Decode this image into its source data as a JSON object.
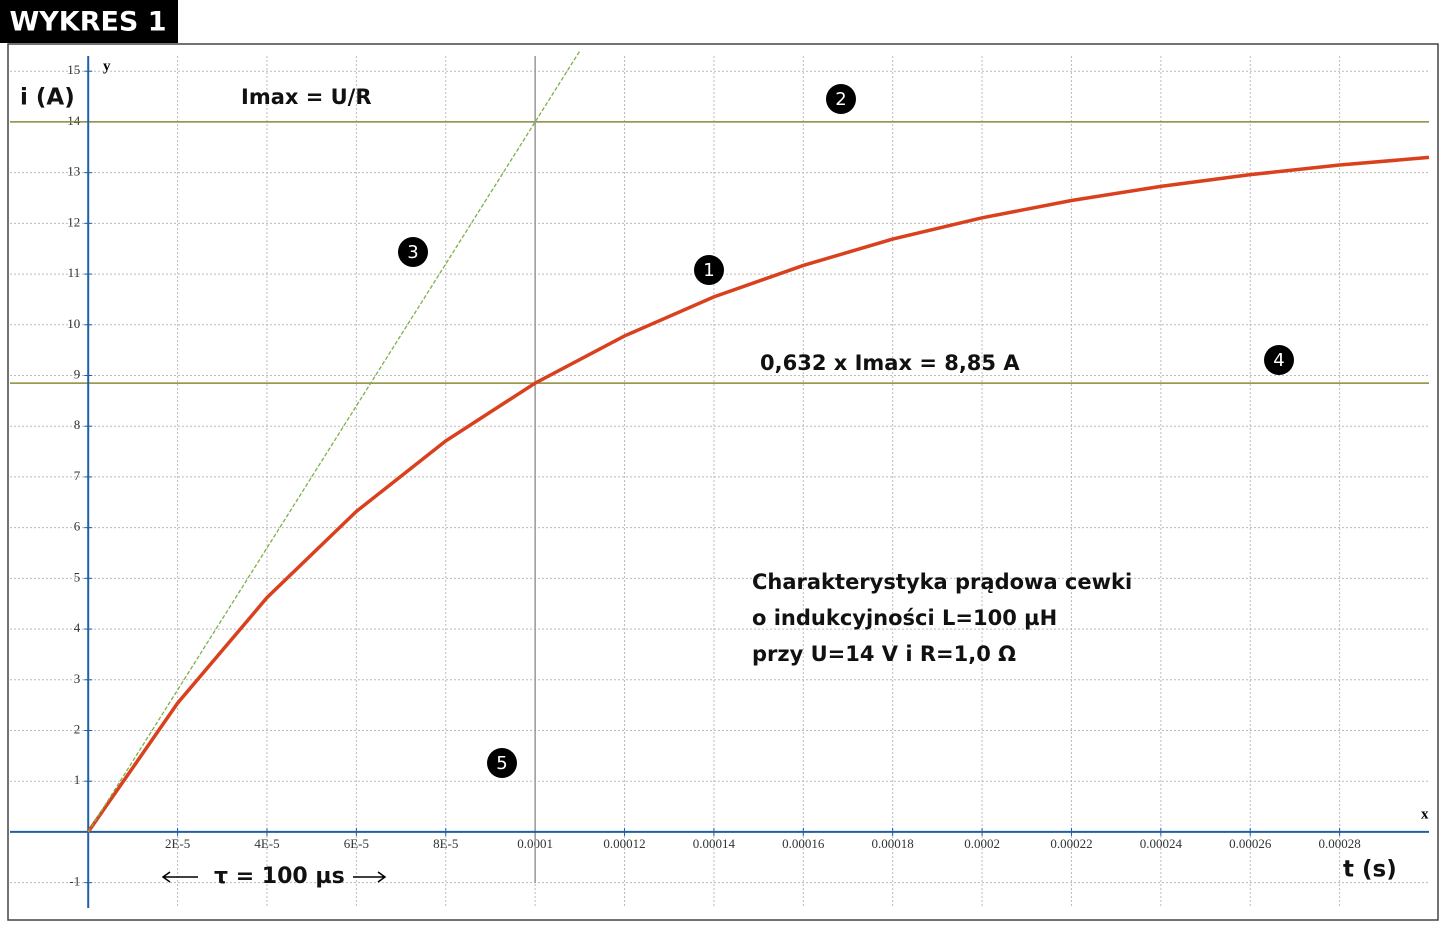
{
  "chart_data": {
    "type": "line",
    "title": "WYKRES 1",
    "x_axis_name": "x",
    "y_axis_name": "y",
    "xlabel": "t (s)",
    "ylabel": "i (A)",
    "xlim": [
      -1.75e-05,
      0.0003
    ],
    "ylim": [
      -1.5,
      15.3
    ],
    "xticks": [
      {
        "value": 2e-05,
        "label": "2E-5"
      },
      {
        "value": 4e-05,
        "label": "4E-5"
      },
      {
        "value": 6e-05,
        "label": "6E-5"
      },
      {
        "value": 8e-05,
        "label": "8E-5"
      },
      0.0001,
      0.00012,
      0.00014,
      0.00016,
      0.00018,
      0.0002,
      0.00022,
      0.00024,
      0.00026,
      0.00028
    ],
    "yticks": [
      -1,
      1,
      2,
      3,
      4,
      5,
      6,
      7,
      8,
      9,
      10,
      11,
      12,
      13,
      14,
      15
    ],
    "grid": true,
    "series": [
      {
        "color": "#d9411e",
        "x": [
          0,
          2e-05,
          4e-05,
          6e-05,
          8e-05,
          0.0001,
          0.00012,
          0.00014,
          0.00016,
          0.00018,
          0.0002,
          0.00022,
          0.00024,
          0.00026,
          0.00028,
          0.0003
        ],
        "values": [
          0,
          2.54,
          4.62,
          6.32,
          7.71,
          8.85,
          9.78,
          10.55,
          11.17,
          11.69,
          12.11,
          12.45,
          12.73,
          12.96,
          13.15,
          13.3
        ]
      },
      {
        "color": "#7db04a",
        "dashed": true,
        "x": [
          0,
          0.00011
        ],
        "values": [
          0,
          15.4
        ]
      }
    ],
    "hlines": [
      14,
      8.85
    ],
    "hline_color": "#8a8a3c",
    "vlines": [
      0.0001
    ],
    "vline_color": "#999999",
    "annotations": [
      "Imax = U/R",
      "0,632 x Imax = 8,85 A",
      "Charakterystyka prądowa cewki",
      "o indukcyjności L=100 µH",
      "przy  U=14 V i R=1,0 Ω",
      "τ = 100 µs"
    ],
    "markers": [
      "1",
      "2",
      "3",
      "4",
      "5"
    ]
  }
}
